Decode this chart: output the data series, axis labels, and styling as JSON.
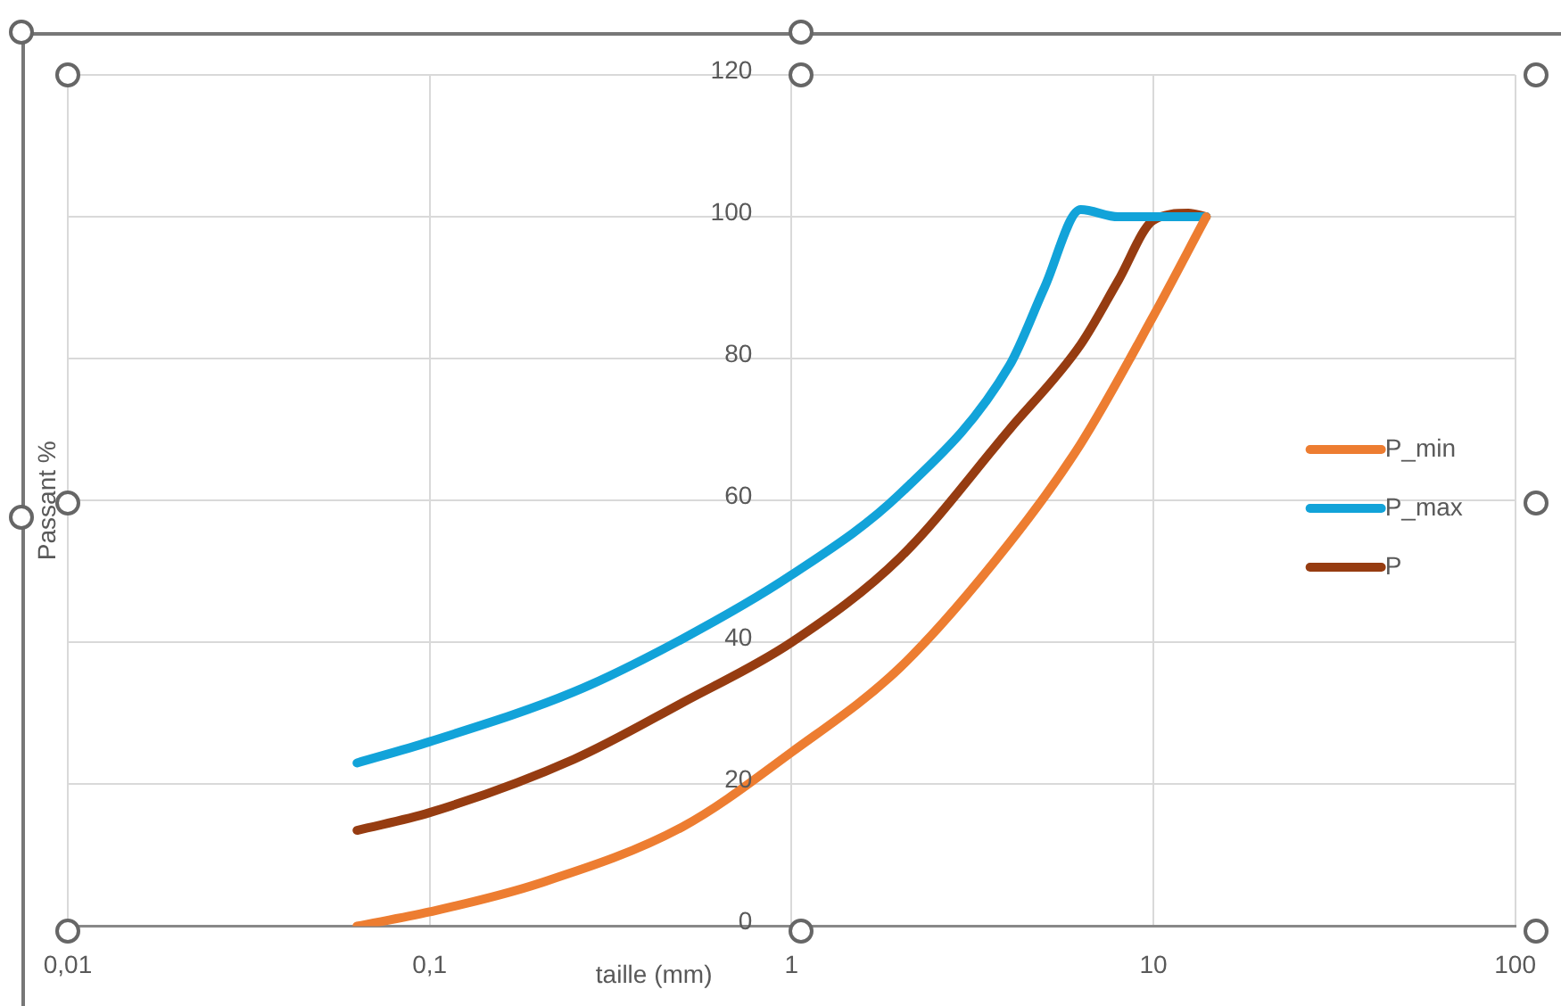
{
  "chart_data": {
    "type": "line",
    "xlabel": "taille (mm)",
    "ylabel": "Passant %",
    "log": "x",
    "xlim": [
      0.01,
      100
    ],
    "xticks": [
      {
        "value": 0.01,
        "label": "0,01"
      },
      {
        "value": 0.1,
        "label": "0,1"
      },
      1,
      10,
      100
    ],
    "ylim": [
      0,
      120
    ],
    "yticks": [
      0,
      20,
      40,
      60,
      80,
      100,
      120
    ],
    "grid": true,
    "legend": "right",
    "marker": "none",
    "line_style": "solid",
    "series": [
      {
        "name": "P_min",
        "color": "#ed7d31",
        "x": [
          0.063,
          0.1,
          0.2,
          0.5,
          1,
          2,
          4,
          6.3,
          10,
          14
        ],
        "values": [
          0,
          2,
          6,
          14,
          24.5,
          36.5,
          54,
          68,
          86,
          100
        ]
      },
      {
        "name": "P_max",
        "color": "#12a3d9",
        "x": [
          0.063,
          0.1,
          0.25,
          0.5,
          1,
          2,
          4,
          5,
          6.3,
          8,
          10,
          14
        ],
        "values": [
          23,
          26,
          33,
          40.5,
          49.5,
          61,
          79,
          90,
          101,
          100,
          100,
          100
        ]
      },
      {
        "name": "P",
        "color": "#963c11",
        "x": [
          0.063,
          0.1,
          0.25,
          0.5,
          1,
          2,
          4,
          6.3,
          8,
          10,
          12.5,
          14
        ],
        "values": [
          13.5,
          16,
          23.5,
          31.5,
          40,
          52,
          70,
          82,
          91,
          99.5,
          100.5,
          100
        ]
      }
    ]
  }
}
